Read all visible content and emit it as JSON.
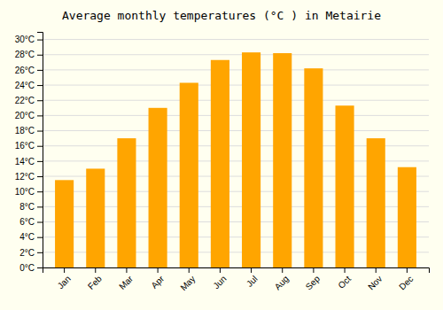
{
  "chart_data": {
    "type": "bar",
    "title": "Average monthly temperatures (°C ) in Metairie",
    "categories": [
      "Jan",
      "Feb",
      "Mar",
      "Apr",
      "May",
      "Jun",
      "Jul",
      "Aug",
      "Sep",
      "Oct",
      "Nov",
      "Dec"
    ],
    "values": [
      11.5,
      13.0,
      17.0,
      21.0,
      24.3,
      27.3,
      28.3,
      28.2,
      26.2,
      21.3,
      17.0,
      13.2
    ],
    "color": "#FFA500",
    "ylim": [
      0,
      31
    ],
    "yticks": [
      {
        "value": 0,
        "label": "0°C"
      },
      {
        "value": 2,
        "label": "2°C"
      },
      {
        "value": 4,
        "label": "4°C"
      },
      {
        "value": 6,
        "label": "6°C"
      },
      {
        "value": 8,
        "label": "8°C"
      },
      {
        "value": 10,
        "label": "10°C"
      },
      {
        "value": 12,
        "label": "12°C"
      },
      {
        "value": 14,
        "label": "14°C"
      },
      {
        "value": 16,
        "label": "16°C"
      },
      {
        "value": 18,
        "label": "18°C"
      },
      {
        "value": 20,
        "label": "20°C"
      },
      {
        "value": 22,
        "label": "22°C"
      },
      {
        "value": 24,
        "label": "24°C"
      },
      {
        "value": 26,
        "label": "26°C"
      },
      {
        "value": 28,
        "label": "28°C"
      },
      {
        "value": 30,
        "label": "30°C"
      }
    ],
    "grid": true
  }
}
